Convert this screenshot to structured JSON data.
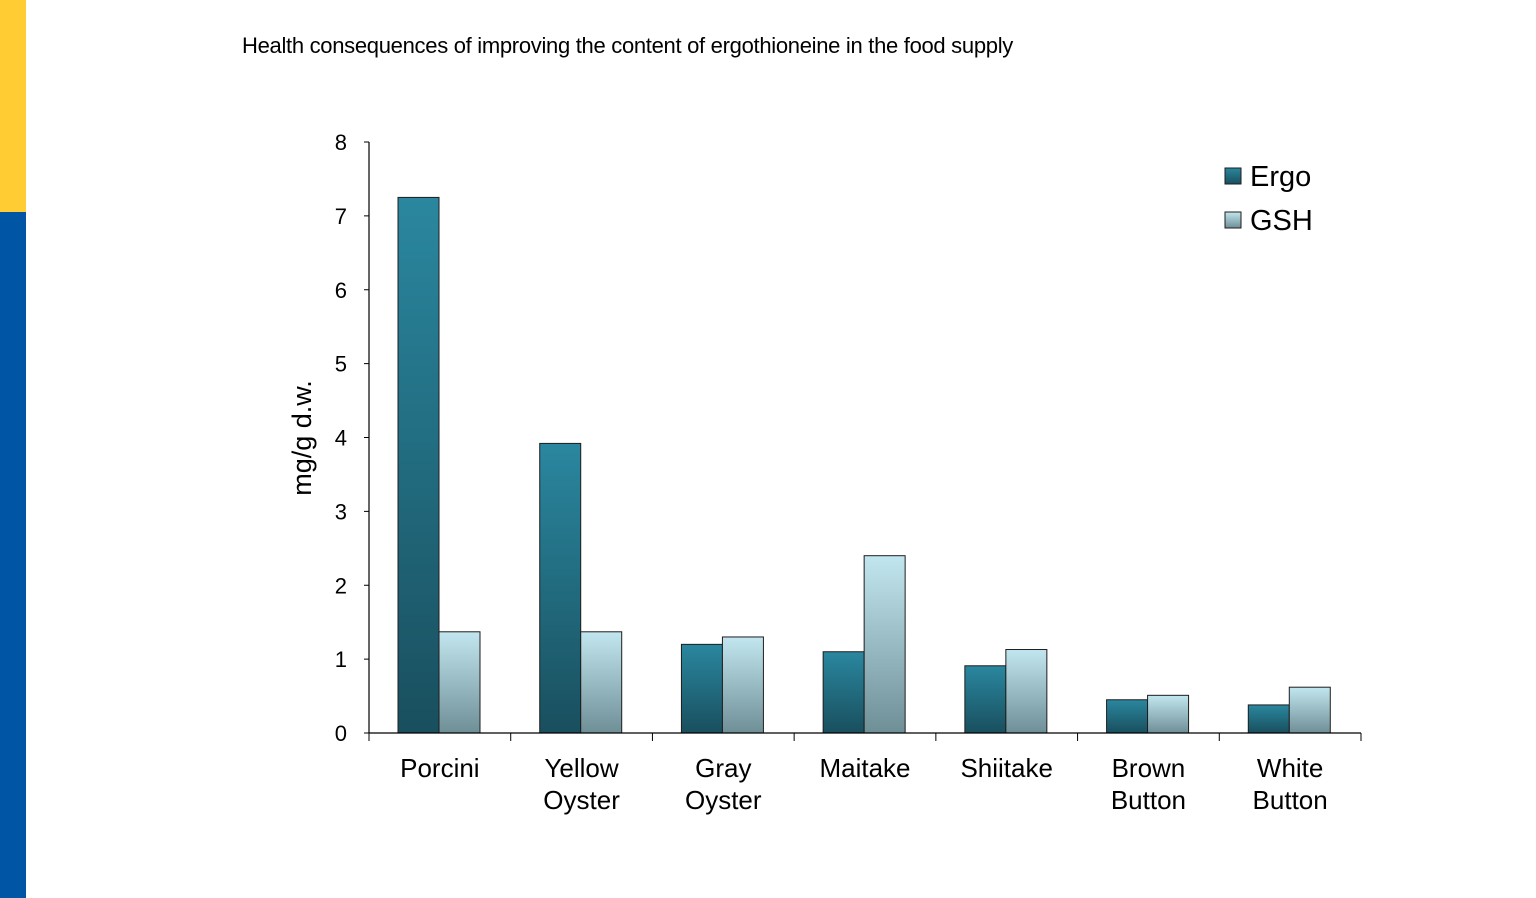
{
  "slide": {
    "title": "Health consequences of improving the content of ergothioneine in the food supply"
  },
  "colors": {
    "accent_yellow": "#FFCC33",
    "accent_blue": "#0055A5",
    "ergo_top": "#2A879F",
    "ergo_bottom": "#194F5E",
    "gsh_top": "#C2E6EF",
    "gsh_bottom": "#6F8F97"
  },
  "chart_data": {
    "type": "bar",
    "title": "",
    "ylabel": "mg/g d.w.",
    "xlabel": "",
    "ylim": [
      0,
      8
    ],
    "yticks": [
      "0",
      "1",
      "2",
      "3",
      "4",
      "5",
      "6",
      "7",
      "8"
    ],
    "categories": [
      [
        "Porcini"
      ],
      [
        "Yellow",
        "Oyster"
      ],
      [
        "Gray",
        "Oyster"
      ],
      [
        "Maitake"
      ],
      [
        "Shiitake"
      ],
      [
        "Brown",
        "Button"
      ],
      [
        "White",
        "Button"
      ]
    ],
    "series": [
      {
        "name": "Ergo",
        "values": [
          7.25,
          3.92,
          1.2,
          1.1,
          0.91,
          0.45,
          0.38
        ]
      },
      {
        "name": "GSH",
        "values": [
          1.37,
          1.37,
          1.3,
          2.4,
          1.13,
          0.51,
          0.62
        ]
      }
    ],
    "legend_position": "top-right",
    "grid": false
  }
}
